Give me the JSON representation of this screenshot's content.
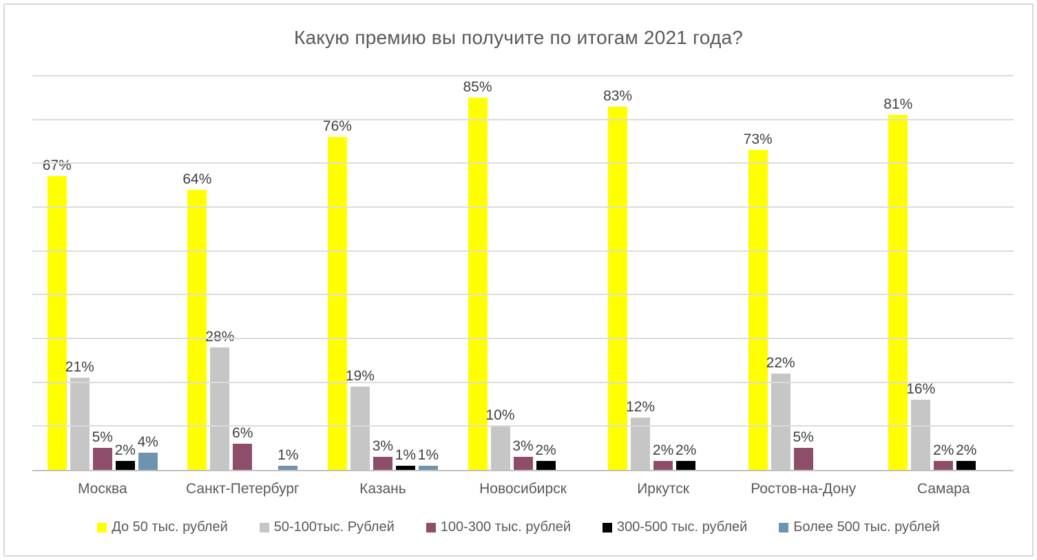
{
  "chart_data": {
    "type": "bar",
    "title": "Какую премию вы получите по итогам 2021 года?",
    "categories": [
      "Москва",
      "Санкт-Петербург",
      "Казань",
      "Новосибирск",
      "Иркутск",
      "Ростов-на-Дону",
      "Самара"
    ],
    "series": [
      {
        "name": "До 50 тыс. рублей",
        "color": "#ffff00",
        "values": [
          67,
          64,
          76,
          85,
          83,
          73,
          81
        ]
      },
      {
        "name": "50-100тыс. Рублей",
        "color": "#c6c6c6",
        "values": [
          21,
          28,
          19,
          10,
          12,
          22,
          16
        ]
      },
      {
        "name": "100-300 тыс. рублей",
        "color": "#8e4d6b",
        "values": [
          5,
          6,
          3,
          3,
          2,
          5,
          2
        ]
      },
      {
        "name": "300-500 тыс. рублей",
        "color": "#000000",
        "values": [
          2,
          null,
          1,
          2,
          2,
          null,
          2
        ]
      },
      {
        "name": "Более 500 тыс. рублей",
        "color": "#6e93ae",
        "values": [
          4,
          1,
          1,
          null,
          null,
          null,
          null
        ]
      }
    ],
    "label_format": "percent",
    "xlabel": "",
    "ylabel": "",
    "ylim": [
      0,
      90
    ],
    "grid": "horizontal, every 10%",
    "y_axis_labels_visible": false,
    "legend_position": "bottom",
    "colors": {
      "grid": "#dcdcdc",
      "axis": "#bfbfbf",
      "title_text": "#595959",
      "category_text": "#595959",
      "data_label_text": "#3f3f3f",
      "frame_border": "#d8d8d8",
      "background": "#ffffff"
    }
  }
}
